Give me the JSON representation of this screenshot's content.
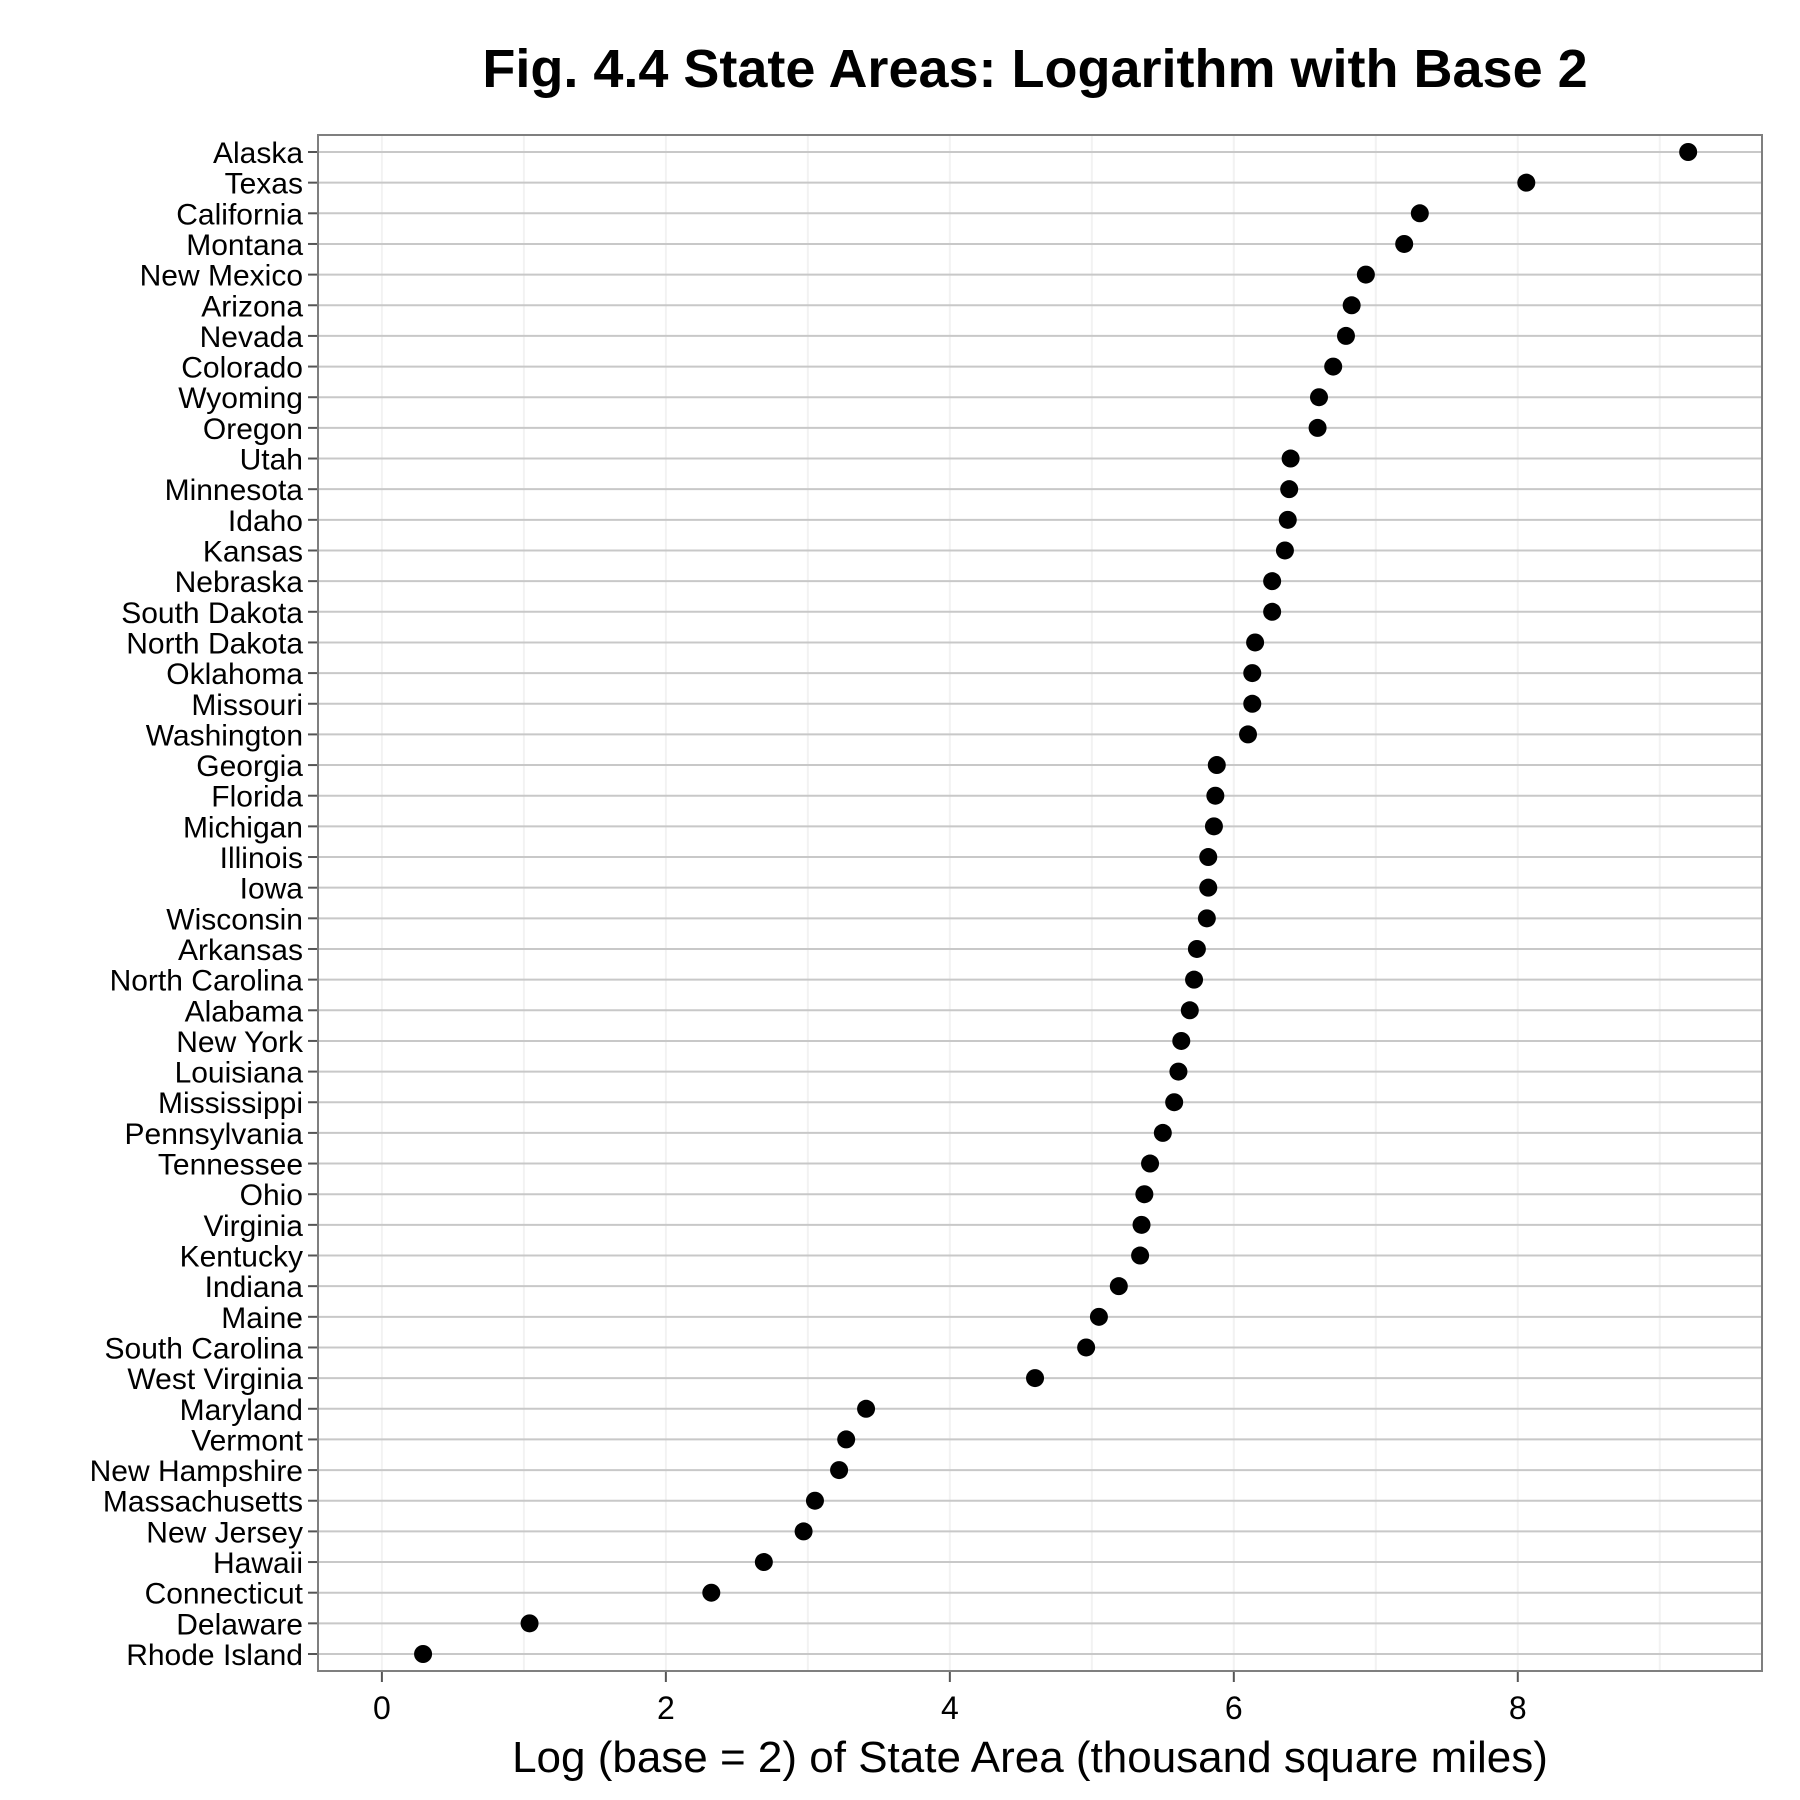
{
  "chart_data": {
    "type": "scatter",
    "title": "Fig. 4.4 State Areas: Logarithm with Base 2",
    "xlabel": "Log (base = 2) of State Area (thousand square miles)",
    "ylabel": "",
    "xlim": [
      -0.45,
      9.72
    ],
    "xticks": [
      0,
      2,
      4,
      6,
      8
    ],
    "grid": true,
    "legend": "none",
    "point_color": "#000000",
    "categories": [
      "Alaska",
      "Texas",
      "California",
      "Montana",
      "New Mexico",
      "Arizona",
      "Nevada",
      "Colorado",
      "Wyoming",
      "Oregon",
      "Utah",
      "Minnesota",
      "Idaho",
      "Kansas",
      "Nebraska",
      "South Dakota",
      "North Dakota",
      "Oklahoma",
      "Missouri",
      "Washington",
      "Georgia",
      "Florida",
      "Michigan",
      "Illinois",
      "Iowa",
      "Wisconsin",
      "Arkansas",
      "North Carolina",
      "Alabama",
      "New York",
      "Louisiana",
      "Mississippi",
      "Pennsylvania",
      "Tennessee",
      "Ohio",
      "Virginia",
      "Kentucky",
      "Indiana",
      "Maine",
      "South Carolina",
      "West Virginia",
      "Maryland",
      "Vermont",
      "New Hampshire",
      "Massachusetts",
      "New Jersey",
      "Hawaii",
      "Connecticut",
      "Delaware",
      "Rhode Island"
    ],
    "values": [
      9.2,
      8.06,
      7.31,
      7.2,
      6.93,
      6.83,
      6.79,
      6.7,
      6.6,
      6.59,
      6.4,
      6.39,
      6.38,
      6.36,
      6.27,
      6.27,
      6.15,
      6.13,
      6.13,
      6.1,
      5.88,
      5.87,
      5.86,
      5.82,
      5.82,
      5.81,
      5.74,
      5.72,
      5.69,
      5.63,
      5.61,
      5.58,
      5.5,
      5.41,
      5.37,
      5.35,
      5.34,
      5.19,
      5.05,
      4.96,
      4.6,
      3.41,
      3.27,
      3.22,
      3.05,
      2.97,
      2.69,
      2.32,
      1.04,
      0.29
    ]
  }
}
